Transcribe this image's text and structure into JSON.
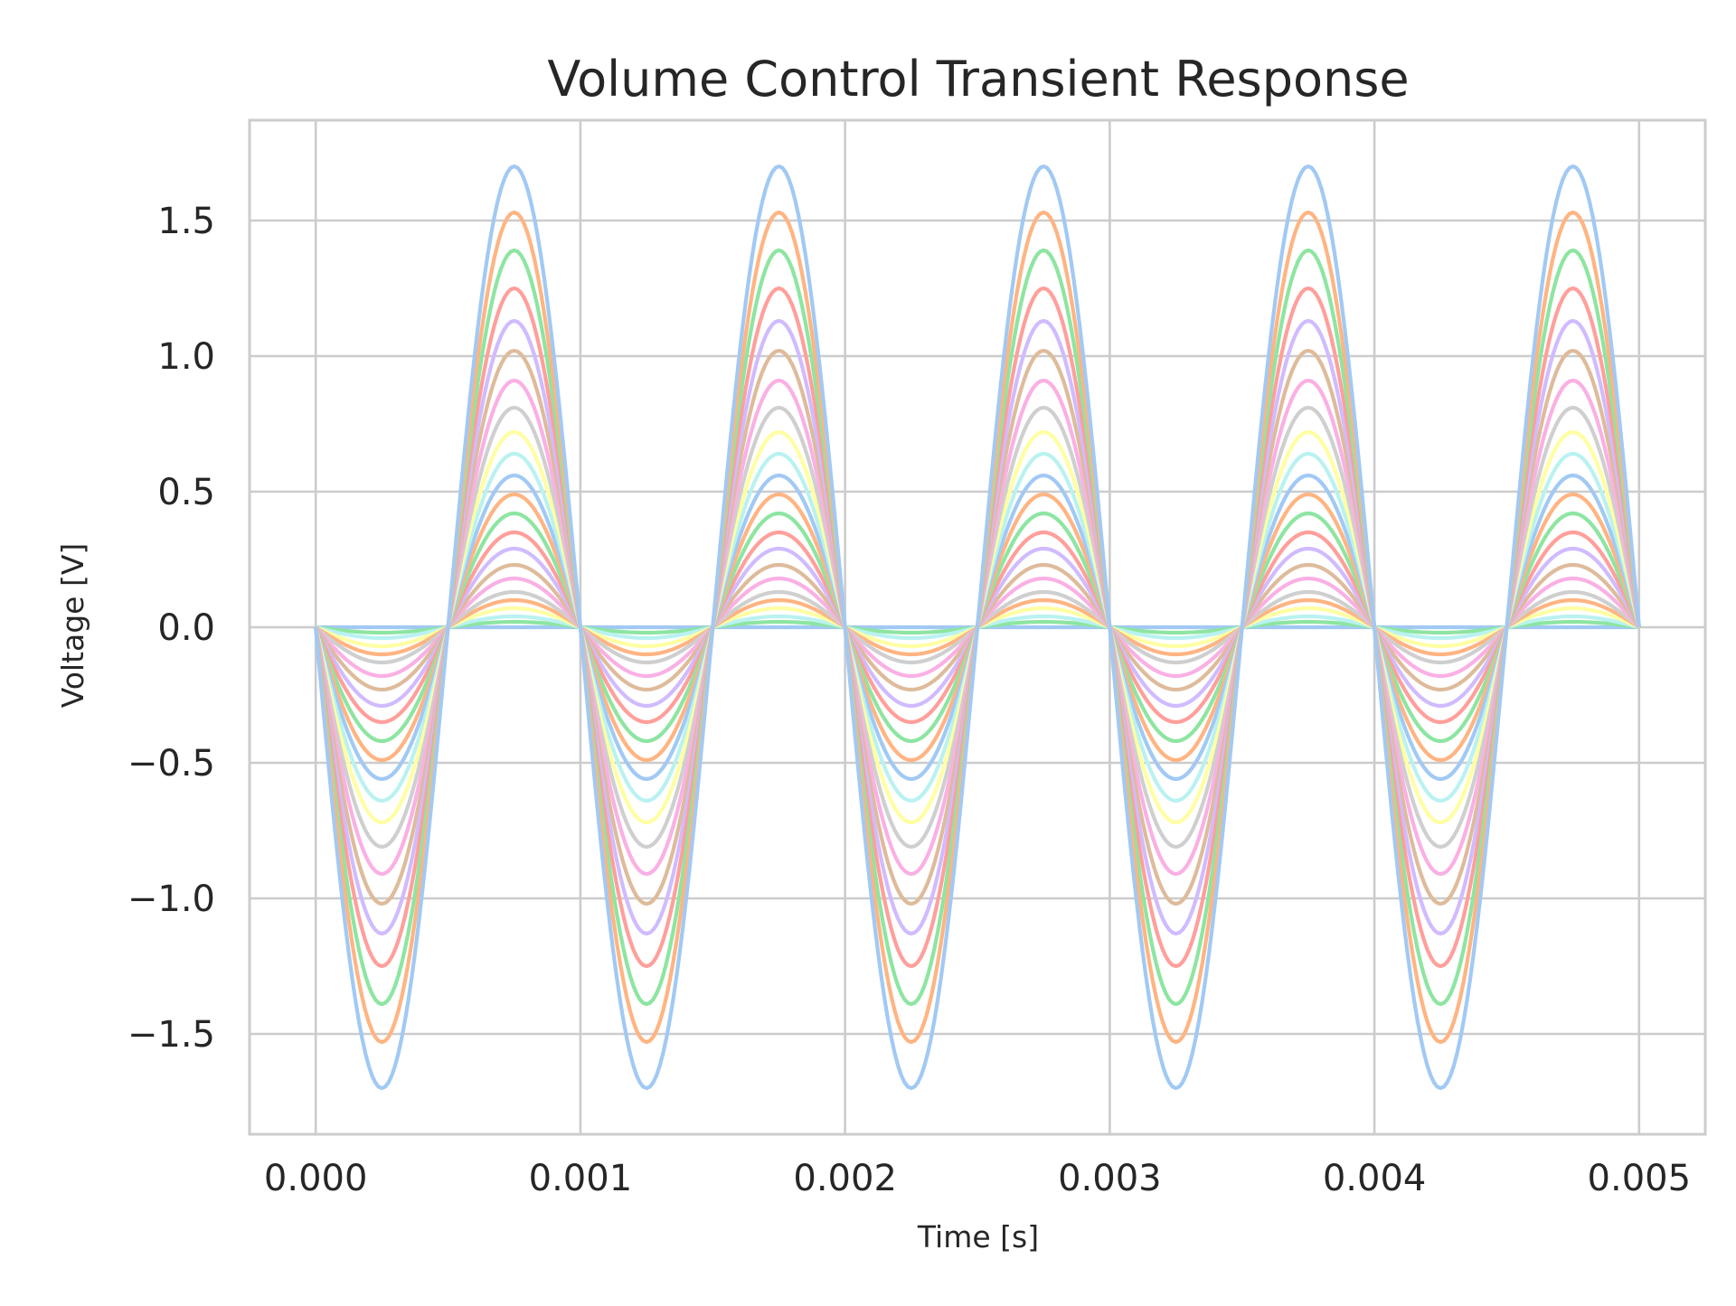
{
  "chart_data": {
    "type": "line",
    "title": "Volume Control Transient Response",
    "xlabel": "Time [s]",
    "ylabel": "Voltage [V]",
    "xlim": [
      -0.00025,
      0.00525
    ],
    "ylim": [
      -1.87,
      1.87
    ],
    "grid": true,
    "legend": "none",
    "xticks": [
      0,
      0.001,
      0.002,
      0.003,
      0.004,
      0.005
    ],
    "xtick_labels": [
      "0.000",
      "0.001",
      "0.002",
      "0.003",
      "0.004",
      "0.005"
    ],
    "yticks": [
      -1.5,
      -1.0,
      -0.5,
      0.0,
      0.5,
      1.0,
      1.5
    ],
    "ytick_labels": [
      "−1.5",
      "−1.0",
      "−0.5",
      "0.0",
      "0.5",
      "1.0",
      "1.5"
    ],
    "signal": {
      "shape": "negative sine, 1000 Hz",
      "frequency_hz": 1000,
      "t_start": 0,
      "t_end": 0.005
    },
    "series": [
      {
        "amplitude": 0.0,
        "color": "#a1c9f4"
      },
      {
        "amplitude": 0.02,
        "color": "#8de5a1"
      },
      {
        "amplitude": 0.04,
        "color": "#b9f2f0"
      },
      {
        "amplitude": 0.07,
        "color": "#fffea3"
      },
      {
        "amplitude": 0.1,
        "color": "#ffb482"
      },
      {
        "amplitude": 0.13,
        "color": "#cfcfcf"
      },
      {
        "amplitude": 0.18,
        "color": "#fab0e4"
      },
      {
        "amplitude": 0.23,
        "color": "#debb9b"
      },
      {
        "amplitude": 0.29,
        "color": "#d0bbff"
      },
      {
        "amplitude": 0.35,
        "color": "#ff9f9b"
      },
      {
        "amplitude": 0.42,
        "color": "#8de5a1"
      },
      {
        "amplitude": 0.49,
        "color": "#ffb482"
      },
      {
        "amplitude": 0.56,
        "color": "#a1c9f4"
      },
      {
        "amplitude": 0.64,
        "color": "#b9f2f0"
      },
      {
        "amplitude": 0.72,
        "color": "#fffea3"
      },
      {
        "amplitude": 0.81,
        "color": "#cfcfcf"
      },
      {
        "amplitude": 0.91,
        "color": "#fab0e4"
      },
      {
        "amplitude": 1.02,
        "color": "#debb9b"
      },
      {
        "amplitude": 1.13,
        "color": "#d0bbff"
      },
      {
        "amplitude": 1.25,
        "color": "#ff9f9b"
      },
      {
        "amplitude": 1.39,
        "color": "#8de5a1"
      },
      {
        "amplitude": 1.53,
        "color": "#ffb482"
      },
      {
        "amplitude": 1.7,
        "color": "#a1c9f4"
      }
    ],
    "colors": {
      "grid": "#cccccc",
      "frame": "#cccccc",
      "text": "#262626"
    }
  }
}
